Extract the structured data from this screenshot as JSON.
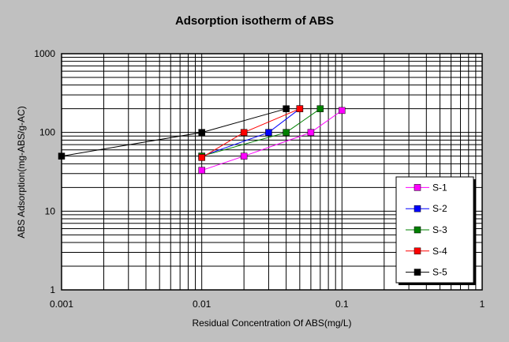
{
  "chart_data": {
    "type": "scatter",
    "title": "Adsorption isotherm of ABS",
    "xlabel": "Residual Concentration Of ABS(mg/L)",
    "ylabel": "ABS Adsorption(mg-ABS/g-AC)",
    "x_scale": "log",
    "y_scale": "log",
    "xlim": [
      0.001,
      1
    ],
    "ylim": [
      1,
      1000
    ],
    "x_ticks": [
      "0.001",
      "0.01",
      "0.1",
      "1"
    ],
    "y_ticks": [
      "1",
      "10",
      "100",
      "1000"
    ],
    "grid": true,
    "legend_position": "right",
    "series": [
      {
        "name": "S-1",
        "color": "#ff00ff",
        "x": [
          0.01,
          0.02,
          0.06,
          0.1
        ],
        "y": [
          33,
          50,
          100,
          190
        ]
      },
      {
        "name": "S-2",
        "color": "#0000ff",
        "x": [
          0.01,
          0.03,
          0.05
        ],
        "y": [
          50,
          100,
          200
        ]
      },
      {
        "name": "S-3",
        "color": "#008000",
        "x": [
          0.01,
          0.04,
          0.07
        ],
        "y": [
          50,
          100,
          200
        ]
      },
      {
        "name": "S-4",
        "color": "#ff0000",
        "x": [
          0.01,
          0.02,
          0.05
        ],
        "y": [
          48,
          100,
          200
        ]
      },
      {
        "name": "S-5",
        "color": "#000000",
        "x": [
          0.001,
          0.01,
          0.04
        ],
        "y": [
          50,
          100,
          200
        ]
      }
    ]
  }
}
